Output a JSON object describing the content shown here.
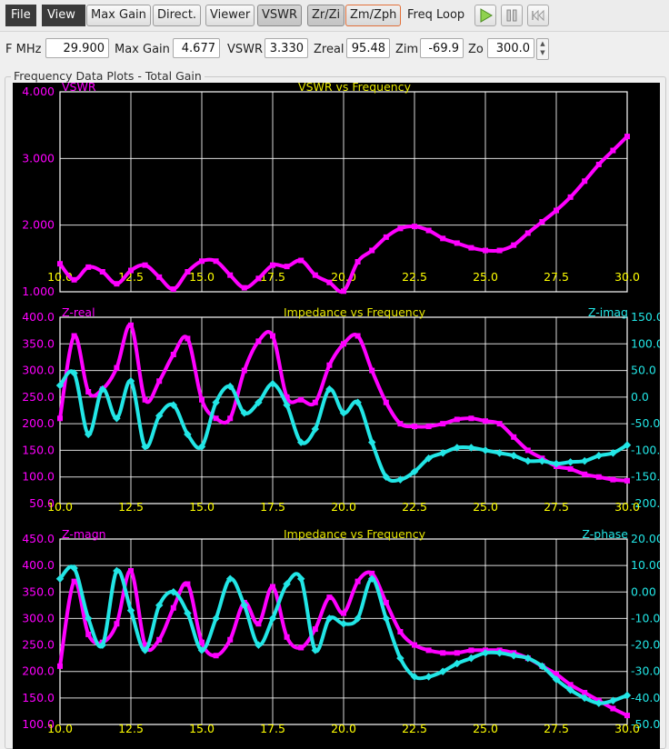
{
  "toolbar": {
    "menu_file": "File",
    "menu_view": "View",
    "buttons": [
      "Max Gain",
      "Direct.",
      "Viewer",
      "VSWR",
      "Zr/Zi",
      "Zm/Zph"
    ],
    "freq_loop_label": "Freq Loop",
    "play_icon": "play-icon",
    "pause_icon": "pause-icon",
    "rewind_icon": "rewind-icon"
  },
  "readouts": {
    "f_mhz_label": "F MHz",
    "f_mhz": "29.900",
    "max_gain_label": "Max Gain",
    "max_gain": "4.677",
    "vswr_label": "VSWR",
    "vswr": "3.330",
    "zreal_label": "Zreal",
    "zreal": "95.48",
    "zim_label": "Zim",
    "zim": "-69.9",
    "zo_label": "Zo",
    "zo": "300.0"
  },
  "group_title": "Frequency Data Plots - Total Gain",
  "colors": {
    "magenta": "#ff00ff",
    "cyan": "#22e6e6",
    "title": "#e6e600",
    "tick": "#ffff00",
    "grid": "#ffffff",
    "background": "#000000"
  },
  "chart_data": [
    {
      "type": "line",
      "title": "VSWR vs Frequency",
      "x": [
        10.0,
        10.5,
        11.0,
        11.5,
        12.0,
        12.5,
        13.0,
        13.5,
        14.0,
        14.5,
        15.0,
        15.5,
        16.0,
        16.5,
        17.0,
        17.5,
        18.0,
        18.5,
        19.0,
        19.5,
        20.0,
        20.5,
        21.0,
        21.5,
        22.0,
        22.5,
        23.0,
        23.5,
        24.0,
        24.5,
        25.0,
        25.5,
        26.0,
        26.5,
        27.0,
        27.5,
        28.0,
        28.5,
        29.0,
        29.5,
        30.0
      ],
      "series": [
        {
          "name": "VSWR",
          "axis": "left",
          "color": "#ff00ff",
          "values": [
            1.42,
            1.18,
            1.37,
            1.3,
            1.12,
            1.32,
            1.4,
            1.22,
            1.04,
            1.3,
            1.46,
            1.46,
            1.25,
            1.06,
            1.2,
            1.4,
            1.38,
            1.47,
            1.25,
            1.14,
            1.01,
            1.45,
            1.62,
            1.82,
            1.95,
            1.98,
            1.92,
            1.8,
            1.73,
            1.66,
            1.62,
            1.62,
            1.7,
            1.88,
            2.05,
            2.22,
            2.42,
            2.66,
            2.91,
            3.12,
            3.33
          ]
        }
      ],
      "xlim": [
        10,
        30
      ],
      "xticks": [
        "10.0",
        "12.5",
        "15.0",
        "17.5",
        "20.0",
        "22.5",
        "25.0",
        "27.5",
        "30.0"
      ],
      "left_axis": {
        "label": "VSWR",
        "ylim": [
          1,
          4
        ],
        "ticks": [
          "4.000",
          "3.000",
          "2.000",
          "1.000"
        ]
      }
    },
    {
      "type": "line",
      "title": "Impedance vs Frequency",
      "x": [
        10.0,
        10.5,
        11.0,
        11.5,
        12.0,
        12.5,
        13.0,
        13.5,
        14.0,
        14.5,
        15.0,
        15.5,
        16.0,
        16.5,
        17.0,
        17.5,
        18.0,
        18.5,
        19.0,
        19.5,
        20.0,
        20.5,
        21.0,
        21.5,
        22.0,
        22.5,
        23.0,
        23.5,
        24.0,
        24.5,
        25.0,
        25.5,
        26.0,
        26.5,
        27.0,
        27.5,
        28.0,
        28.5,
        29.0,
        29.5,
        30.0
      ],
      "series": [
        {
          "name": "Z-real",
          "axis": "left",
          "color": "#ff00ff",
          "values": [
            210,
            365,
            260,
            265,
            305,
            385,
            245,
            280,
            330,
            360,
            245,
            210,
            210,
            300,
            355,
            365,
            250,
            245,
            240,
            310,
            350,
            365,
            300,
            240,
            200,
            195,
            195,
            200,
            208,
            210,
            205,
            200,
            175,
            150,
            135,
            120,
            115,
            105,
            100,
            95,
            93
          ]
        },
        {
          "name": "Z-imag",
          "axis": "right",
          "color": "#22e6e6",
          "values": [
            22,
            45,
            -70,
            15,
            -40,
            30,
            -93,
            -35,
            -15,
            -70,
            -93,
            -10,
            20,
            -30,
            -10,
            25,
            -15,
            -85,
            -60,
            15,
            -30,
            -10,
            -85,
            -150,
            -155,
            -140,
            -115,
            -105,
            -95,
            -95,
            -100,
            -105,
            -110,
            -120,
            -120,
            -125,
            -122,
            -120,
            -110,
            -105,
            -90
          ]
        }
      ],
      "xlim": [
        10,
        30
      ],
      "xticks": [
        "10.0",
        "12.5",
        "15.0",
        "17.5",
        "20.0",
        "22.5",
        "25.0",
        "27.5",
        "30.0"
      ],
      "left_axis": {
        "label": "Z-real",
        "ylim": [
          50,
          400
        ],
        "ticks": [
          "400.0",
          "350.0",
          "300.0",
          "250.0",
          "200.0",
          "150.0",
          "100.0",
          "50.0"
        ]
      },
      "right_axis": {
        "label": "Z-imag",
        "ylim": [
          -200,
          150
        ],
        "ticks": [
          "150.0",
          "100.0",
          "50.0",
          "0.0",
          "-50.0",
          "-100.0",
          "-150.0",
          "-200.0"
        ]
      }
    },
    {
      "type": "line",
      "title": "Impedance vs Frequency",
      "x": [
        10.0,
        10.5,
        11.0,
        11.5,
        12.0,
        12.5,
        13.0,
        13.5,
        14.0,
        14.5,
        15.0,
        15.5,
        16.0,
        16.5,
        17.0,
        17.5,
        18.0,
        18.5,
        19.0,
        19.5,
        20.0,
        20.5,
        21.0,
        21.5,
        22.0,
        22.5,
        23.0,
        23.5,
        24.0,
        24.5,
        25.0,
        25.5,
        26.0,
        26.5,
        27.0,
        27.5,
        28.0,
        28.5,
        29.0,
        29.5,
        30.0
      ],
      "series": [
        {
          "name": "Z-magn",
          "axis": "left",
          "color": "#ff00ff",
          "values": [
            210,
            370,
            270,
            255,
            290,
            390,
            250,
            260,
            320,
            365,
            255,
            230,
            260,
            330,
            290,
            360,
            265,
            245,
            280,
            340,
            310,
            370,
            385,
            330,
            275,
            250,
            240,
            235,
            235,
            240,
            240,
            240,
            235,
            225,
            210,
            195,
            175,
            160,
            145,
            130,
            117
          ]
        },
        {
          "name": "Z-phase",
          "axis": "right",
          "color": "#22e6e6",
          "values": [
            5,
            9,
            -10,
            -20,
            8,
            -7,
            -22,
            -5,
            0,
            -8,
            -22,
            -10,
            5,
            -5,
            -20,
            -10,
            3,
            5,
            -22,
            -10,
            -12,
            -10,
            5,
            -10,
            -25,
            -32,
            -32,
            -30,
            -27,
            -25,
            -23,
            -23,
            -24,
            -25,
            -28,
            -33,
            -37,
            -40,
            -42,
            -41,
            -39
          ]
        }
      ],
      "xlim": [
        10,
        30
      ],
      "xticks": [
        "10.0",
        "12.5",
        "15.0",
        "17.5",
        "20.0",
        "22.5",
        "25.0",
        "27.5",
        "30.0"
      ],
      "left_axis": {
        "label": "Z-magn",
        "ylim": [
          100,
          450
        ],
        "ticks": [
          "450.0",
          "400.0",
          "350.0",
          "300.0",
          "250.0",
          "200.0",
          "150.0",
          "100.0"
        ]
      },
      "right_axis": {
        "label": "Z-phase",
        "ylim": [
          -50,
          20
        ],
        "ticks": [
          "20.00",
          "10.00",
          "0.00",
          "-10.00",
          "-20.00",
          "-30.00",
          "-40.00",
          "-50.00"
        ]
      }
    }
  ]
}
